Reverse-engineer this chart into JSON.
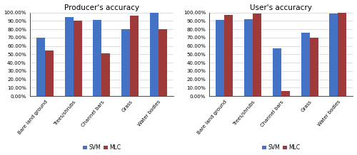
{
  "left_title": "Producer's accuracy",
  "right_title": "User's accuracry",
  "categories": [
    "Bare land ground",
    "Trees/shrubs",
    "Channel bars",
    "Grass",
    "Water bodies"
  ],
  "producer_svm": [
    0.7,
    0.95,
    0.91,
    0.8,
    1.0
  ],
  "producer_mlc": [
    0.55,
    0.9,
    0.51,
    0.96,
    0.8
  ],
  "user_svm": [
    0.91,
    0.92,
    0.57,
    0.76,
    0.99
  ],
  "user_mlc": [
    0.97,
    0.99,
    0.06,
    0.7,
    1.0
  ],
  "svm_color": "#4472C4",
  "mlc_color": "#9E3A3A",
  "legend_labels": [
    "SVM",
    "MLC"
  ],
  "ylim": [
    0.0,
    1.0
  ],
  "yticks": [
    0.0,
    0.1,
    0.2,
    0.3,
    0.4,
    0.5,
    0.6,
    0.7,
    0.8,
    0.9,
    1.0
  ],
  "ytick_labels": [
    "0.00%",
    "10.00%",
    "20.00%",
    "30.00%",
    "40.00%",
    "50.00%",
    "60.00%",
    "70.00%",
    "80.00%",
    "90.00%",
    "100.00%"
  ],
  "bar_width": 0.3,
  "title_fontsize": 7.5,
  "tick_fontsize": 5.0,
  "legend_fontsize": 5.5
}
